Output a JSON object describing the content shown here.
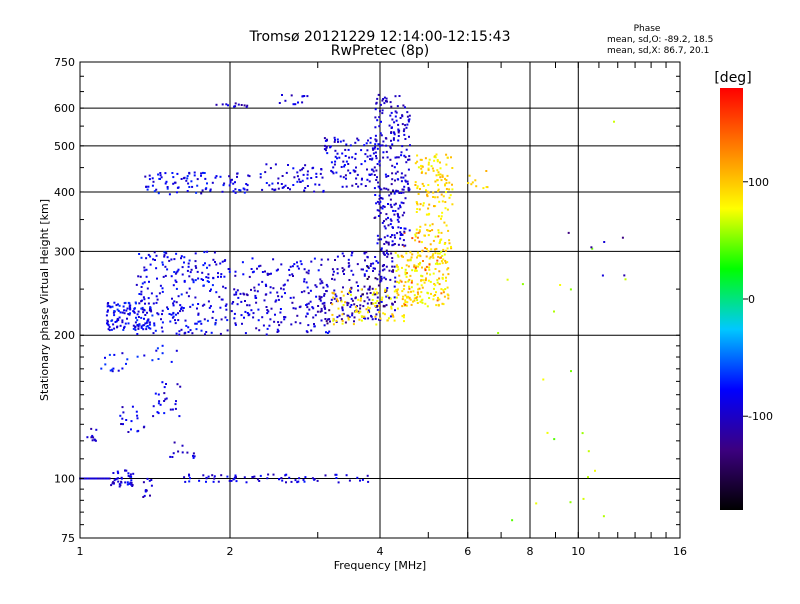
{
  "chart_data": {
    "type": "scatter",
    "title": "Tromsø 20121229 12:14:00-12:15:43",
    "subtitle": "RwPretec (8p)",
    "xlabel": "Frequency [MHz]",
    "ylabel": "Stationary phase Virtual Height [km]",
    "x_scale": "log",
    "y_scale": "log",
    "xlim": [
      1,
      16
    ],
    "ylim": [
      75,
      750
    ],
    "x_ticks": [
      1,
      2,
      4,
      6,
      8,
      10,
      16
    ],
    "x_tick_labels": [
      "1",
      "2",
      "4",
      "6",
      "8",
      "10",
      "16"
    ],
    "x_major_grid": [
      2,
      4,
      6,
      8,
      10
    ],
    "y_ticks": [
      75,
      100,
      200,
      300,
      400,
      500,
      600,
      750
    ],
    "y_tick_labels": [
      "75",
      "100",
      "200",
      "300",
      "400",
      "500",
      "600",
      "750"
    ],
    "y_major_grid": [
      100,
      200,
      300,
      400,
      500,
      600
    ],
    "grid": true,
    "stats": {
      "heading": "Phase",
      "o_line": "mean, sd,O: -89.2, 18.5",
      "x_line": "mean, sd,X: 86.7, 20.1"
    },
    "colorbar": {
      "label": "[deg]",
      "range": [
        -180,
        180
      ],
      "ticks": [
        100,
        0,
        -100
      ],
      "tick_labels": [
        "100",
        "0",
        "-100"
      ],
      "colors": [
        "#000000",
        "#3c0080",
        "#0000ff",
        "#00c8ff",
        "#00ff00",
        "#ffff00",
        "#ff8000",
        "#ff0000"
      ]
    },
    "series": [
      {
        "x": [
          1.0,
          1.15
        ],
        "y": [
          100,
          100
        ],
        "phase": -95,
        "n": 90
      },
      {
        "x": [
          1.15,
          1.28
        ],
        "y": [
          96,
          104
        ],
        "phase": -92,
        "n": 40
      },
      {
        "x": [
          1.33,
          1.42
        ],
        "y": [
          90,
          100
        ],
        "phase": -100,
        "n": 12
      },
      {
        "x": [
          1.6,
          3.8
        ],
        "y": [
          98,
          102
        ],
        "phase": -90,
        "n": 70
      },
      {
        "x": [
          1.03,
          1.08
        ],
        "y": [
          120,
          128
        ],
        "phase": -95,
        "n": 10
      },
      {
        "x": [
          1.2,
          1.35
        ],
        "y": [
          125,
          142
        ],
        "phase": -92,
        "n": 18
      },
      {
        "x": [
          1.4,
          1.6
        ],
        "y": [
          135,
          160
        ],
        "phase": -90,
        "n": 25
      },
      {
        "x": [
          1.5,
          1.7
        ],
        "y": [
          110,
          120
        ],
        "phase": -95,
        "n": 12
      },
      {
        "x": [
          1.1,
          1.25
        ],
        "y": [
          165,
          185
        ],
        "phase": -80,
        "n": 14
      },
      {
        "x": [
          1.3,
          1.6
        ],
        "y": [
          175,
          195
        ],
        "phase": -75,
        "n": 10
      },
      {
        "x": [
          1.13,
          1.4
        ],
        "y": [
          205,
          235
        ],
        "phase": -82,
        "n": 120
      },
      {
        "x": [
          1.3,
          1.9
        ],
        "y": [
          200,
          300
        ],
        "phase": -85,
        "n": 220
      },
      {
        "x": [
          1.9,
          3.2
        ],
        "y": [
          200,
          290
        ],
        "phase": -92,
        "n": 230
      },
      {
        "x": [
          3.2,
          4.3
        ],
        "y": [
          215,
          300
        ],
        "phase": -98,
        "n": 150
      },
      {
        "x": [
          3.0,
          4.0
        ],
        "y": [
          210,
          245
        ],
        "phase": -120,
        "n": 40
      },
      {
        "x": [
          3.6,
          4.3
        ],
        "y": [
          220,
          280
        ],
        "phase": -135,
        "n": 25
      },
      {
        "x": [
          3.2,
          4.5
        ],
        "y": [
          210,
          250
        ],
        "phase": 90,
        "n": 90
      },
      {
        "x": [
          4.3,
          5.5
        ],
        "y": [
          230,
          300
        ],
        "phase": 88,
        "n": 170
      },
      {
        "x": [
          4.7,
          5.6
        ],
        "y": [
          300,
          480
        ],
        "phase": 92,
        "n": 160
      },
      {
        "x": [
          4.4,
          5.4
        ],
        "y": [
          230,
          330
        ],
        "phase": 135,
        "n": 35
      },
      {
        "x": [
          3.9,
          4.6
        ],
        "y": [
          300,
          640
        ],
        "phase": -95,
        "n": 260
      },
      {
        "x": [
          3.1,
          4.0
        ],
        "y": [
          410,
          520
        ],
        "phase": -92,
        "n": 110
      },
      {
        "x": [
          2.3,
          3.1
        ],
        "y": [
          400,
          460
        ],
        "phase": -88,
        "n": 60
      },
      {
        "x": [
          1.35,
          2.2
        ],
        "y": [
          395,
          440
        ],
        "phase": -85,
        "n": 95
      },
      {
        "x": [
          1.85,
          2.2
        ],
        "y": [
          600,
          625
        ],
        "phase": -100,
        "n": 12
      },
      {
        "x": [
          2.5,
          2.95
        ],
        "y": [
          610,
          640
        ],
        "phase": -95,
        "n": 12
      },
      {
        "x": [
          6.0,
          6.7
        ],
        "y": [
          400,
          445
        ],
        "phase": 100,
        "n": 10
      },
      {
        "x": [
          6.8,
          13.0
        ],
        "y": [
          80,
          650
        ],
        "phase": 60,
        "n": 22
      },
      {
        "x": [
          9.5,
          12.5
        ],
        "y": [
          250,
          350
        ],
        "phase": -110,
        "n": 6
      }
    ]
  }
}
